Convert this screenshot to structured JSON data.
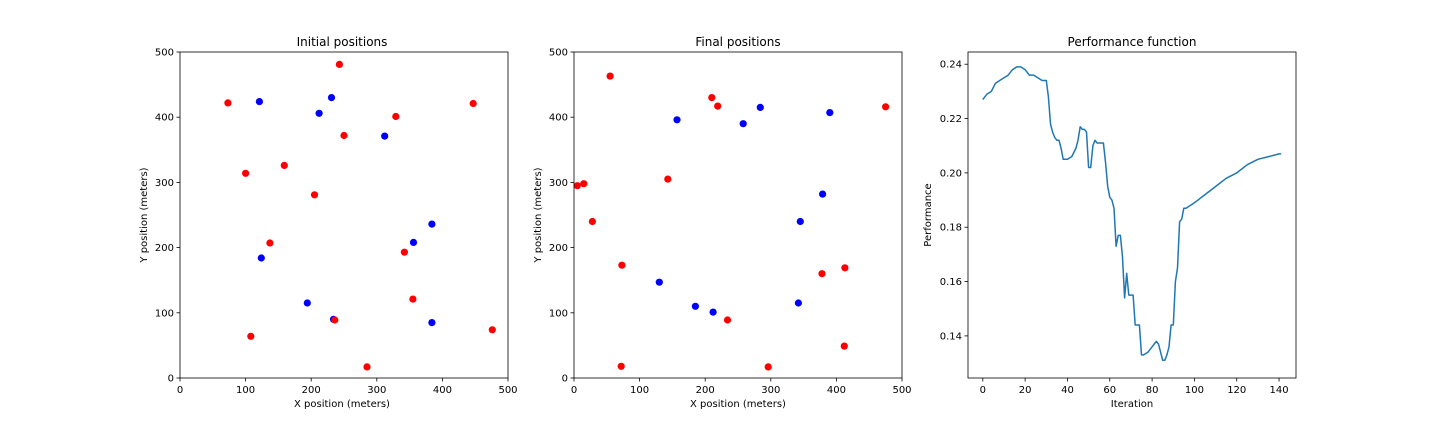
{
  "chart_data": [
    {
      "type": "scatter",
      "title": "Initial positions",
      "xlabel": "X position (meters)",
      "ylabel": "Y position (meters)",
      "xlim": [
        0,
        500
      ],
      "ylim": [
        0,
        500
      ],
      "xticks": [
        0,
        100,
        200,
        300,
        400,
        500
      ],
      "yticks": [
        0,
        100,
        200,
        300,
        400,
        500
      ],
      "grid": false,
      "series": [
        {
          "color": "#0000ff",
          "points": [
            [
              121,
              424
            ],
            [
              231,
              430
            ],
            [
              212,
              406
            ],
            [
              312,
              371
            ],
            [
              384,
              236
            ],
            [
              356,
              208
            ],
            [
              124,
              184
            ],
            [
              194,
              115
            ],
            [
              234,
              90
            ],
            [
              384,
              85
            ]
          ]
        },
        {
          "color": "#ff0000",
          "points": [
            [
              243,
              481
            ],
            [
              73,
              422
            ],
            [
              447,
              421
            ],
            [
              329,
              401
            ],
            [
              250,
              372
            ],
            [
              159,
              326
            ],
            [
              100,
              314
            ],
            [
              205,
              281
            ],
            [
              137,
              207
            ],
            [
              342,
              193
            ],
            [
              355,
              121
            ],
            [
              236,
              89
            ],
            [
              108,
              64
            ],
            [
              476,
              74
            ],
            [
              285,
              17
            ]
          ]
        }
      ]
    },
    {
      "type": "scatter",
      "title": "Final positions",
      "xlabel": "X position (meters)",
      "ylabel": "Y position (meters)",
      "xlim": [
        0,
        500
      ],
      "ylim": [
        0,
        500
      ],
      "xticks": [
        0,
        100,
        200,
        300,
        400,
        500
      ],
      "yticks": [
        0,
        100,
        200,
        300,
        400,
        500
      ],
      "grid": false,
      "series": [
        {
          "color": "#0000ff",
          "points": [
            [
              157,
              396
            ],
            [
              258,
              390
            ],
            [
              284,
              415
            ],
            [
              390,
              407
            ],
            [
              379,
              282
            ],
            [
              345,
              240
            ],
            [
              130,
              147
            ],
            [
              185,
              110
            ],
            [
              212,
              101
            ],
            [
              342,
              115
            ]
          ]
        },
        {
          "color": "#ff0000",
          "points": [
            [
              55,
              463
            ],
            [
              210,
              430
            ],
            [
              219,
              417
            ],
            [
              475,
              416
            ],
            [
              143,
              305
            ],
            [
              15,
              298
            ],
            [
              5,
              295
            ],
            [
              28,
              240
            ],
            [
              73,
              173
            ],
            [
              378,
              160
            ],
            [
              413,
              169
            ],
            [
              234,
              89
            ],
            [
              72,
              18
            ],
            [
              296,
              17
            ],
            [
              412,
              49
            ]
          ]
        }
      ]
    },
    {
      "type": "line",
      "title": "Performance function",
      "xlabel": "Iteration",
      "ylabel": "Performance",
      "xlim": [
        -7,
        148
      ],
      "ylim": [
        0.1245,
        0.2445
      ],
      "xticks": [
        0,
        20,
        40,
        60,
        80,
        100,
        120,
        140
      ],
      "yticks": [
        0.14,
        0.16,
        0.18,
        0.2,
        0.22,
        0.24
      ],
      "ytick_labels": [
        "0.14",
        "0.16",
        "0.18",
        "0.20",
        "0.22",
        "0.24"
      ],
      "grid": false,
      "series": [
        {
          "color": "#1f77b4",
          "x": [
            0,
            2,
            4,
            6,
            8,
            10,
            12,
            14,
            16,
            18,
            20,
            22,
            24,
            26,
            28,
            30,
            31,
            32,
            33,
            34,
            35,
            36,
            37,
            38,
            40,
            42,
            44,
            45,
            46,
            47,
            48,
            49,
            50,
            51,
            52,
            53,
            54,
            55,
            56,
            57,
            58,
            59,
            60,
            61,
            62,
            63,
            64,
            65,
            66,
            67,
            68,
            69,
            70,
            71,
            72,
            73,
            74,
            75,
            76,
            78,
            80,
            81,
            82,
            83,
            84,
            85,
            86,
            87,
            88,
            89,
            90,
            91,
            92,
            93,
            94,
            95,
            96,
            98,
            100,
            105,
            110,
            115,
            120,
            125,
            130,
            135,
            140,
            141
          ],
          "y": [
            0.227,
            0.229,
            0.23,
            0.233,
            0.234,
            0.235,
            0.236,
            0.238,
            0.239,
            0.239,
            0.238,
            0.236,
            0.236,
            0.235,
            0.234,
            0.234,
            0.228,
            0.218,
            0.215,
            0.213,
            0.212,
            0.212,
            0.209,
            0.205,
            0.205,
            0.206,
            0.209,
            0.212,
            0.217,
            0.216,
            0.216,
            0.215,
            0.202,
            0.202,
            0.21,
            0.212,
            0.211,
            0.211,
            0.211,
            0.211,
            0.204,
            0.195,
            0.191,
            0.19,
            0.187,
            0.173,
            0.177,
            0.177,
            0.169,
            0.154,
            0.163,
            0.155,
            0.155,
            0.155,
            0.144,
            0.144,
            0.144,
            0.133,
            0.133,
            0.134,
            0.136,
            0.137,
            0.138,
            0.137,
            0.134,
            0.131,
            0.131,
            0.133,
            0.136,
            0.144,
            0.144,
            0.16,
            0.165,
            0.182,
            0.183,
            0.187,
            0.187,
            0.188,
            0.189,
            0.192,
            0.195,
            0.198,
            0.2,
            0.203,
            0.205,
            0.206,
            0.207,
            0.207
          ]
        }
      ]
    }
  ]
}
